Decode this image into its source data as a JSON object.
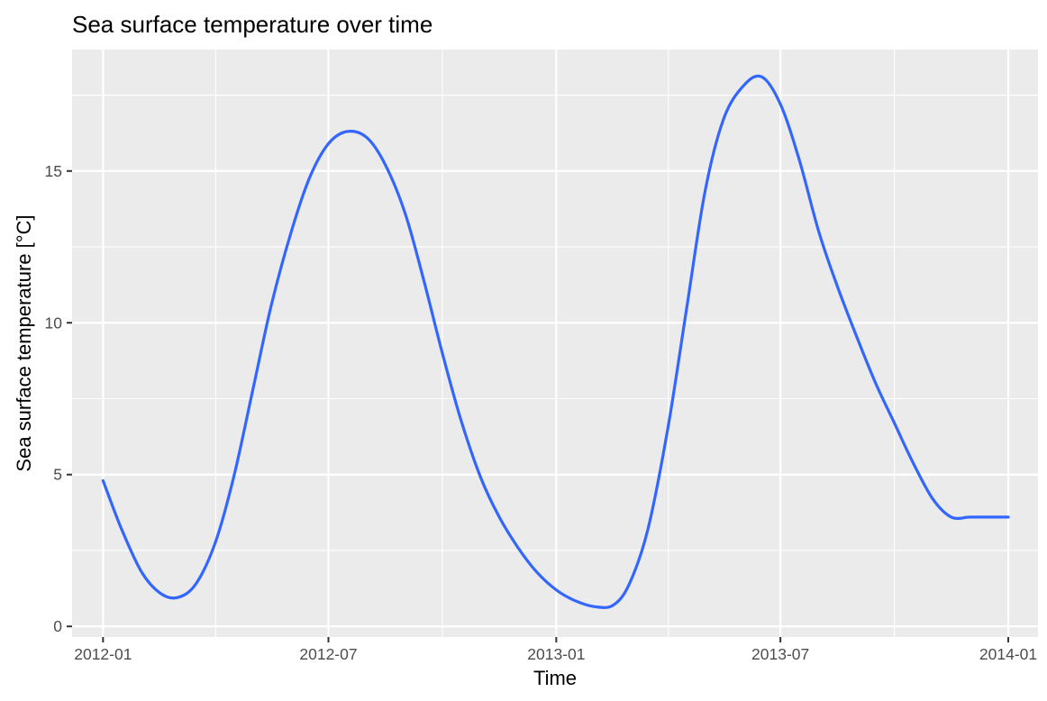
{
  "chart_data": {
    "type": "line",
    "title": "Sea surface temperature over time",
    "xlabel": "Time",
    "ylabel": "Sea surface temperature [°C]",
    "x_ticks": [
      "2012-01",
      "2012-07",
      "2013-01",
      "2013-07",
      "2014-01"
    ],
    "y_ticks": [
      "0",
      "5",
      "10",
      "15"
    ],
    "xlim": [
      "2011-12-07",
      "2014-01-25"
    ],
    "ylim": [
      -0.35,
      19.0
    ],
    "grid": true,
    "legend": "none",
    "line_color": "#3366ff",
    "panel_background": "#ebebeb",
    "series": [
      {
        "x": [
          "2012-01-01",
          "2012-01-16",
          "2012-02-01",
          "2012-02-16",
          "2012-03-01",
          "2012-03-16",
          "2012-04-01",
          "2012-04-16",
          "2012-05-01",
          "2012-05-16",
          "2012-06-01",
          "2012-06-16",
          "2012-07-01",
          "2012-07-16",
          "2012-08-01",
          "2012-08-16",
          "2012-09-01",
          "2012-09-16",
          "2012-10-01",
          "2012-10-16",
          "2012-11-01",
          "2012-11-16",
          "2012-12-01",
          "2012-12-16",
          "2013-01-01",
          "2013-01-16",
          "2013-02-01",
          "2013-02-16",
          "2013-03-01",
          "2013-03-16",
          "2013-04-01",
          "2013-04-16",
          "2013-05-01",
          "2013-05-16",
          "2013-06-01",
          "2013-06-16",
          "2013-07-01",
          "2013-07-16",
          "2013-08-01",
          "2013-08-16",
          "2013-09-01",
          "2013-09-16",
          "2013-10-01",
          "2013-10-16",
          "2013-11-01",
          "2013-11-16",
          "2013-12-01",
          "2013-12-16",
          "2014-01-01"
        ],
        "y": [
          4.8,
          3.2,
          1.8,
          1.1,
          0.95,
          1.4,
          2.8,
          5.0,
          7.8,
          10.6,
          13.0,
          14.8,
          15.9,
          16.3,
          16.1,
          15.2,
          13.6,
          11.4,
          9.0,
          6.8,
          4.9,
          3.6,
          2.6,
          1.8,
          1.2,
          0.85,
          0.65,
          0.7,
          1.4,
          3.2,
          6.5,
          10.4,
          14.3,
          16.7,
          17.8,
          18.1,
          17.2,
          15.4,
          13.0,
          11.2,
          9.5,
          8.0,
          6.7,
          5.4,
          4.2,
          3.6,
          3.6,
          3.6,
          3.6
        ]
      }
    ]
  }
}
